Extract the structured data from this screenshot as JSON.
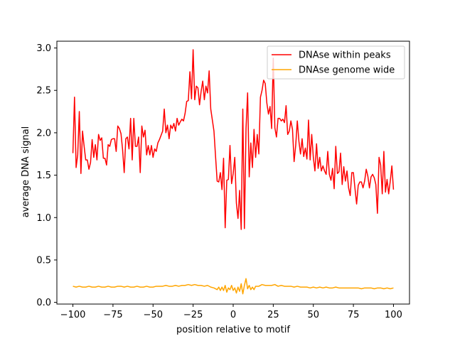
{
  "chart_data": {
    "type": "line",
    "title": "",
    "xlabel": "position relative to motif",
    "ylabel": "average DNA signal",
    "xlim": [
      -110,
      110
    ],
    "ylim": [
      -0.02,
      3.08
    ],
    "xticks": [
      -100,
      -75,
      -50,
      -25,
      0,
      25,
      50,
      75,
      100
    ],
    "yticks": [
      0.0,
      0.5,
      1.0,
      1.5,
      2.0,
      2.5,
      3.0
    ],
    "xtick_labels": [
      "−100",
      "−75",
      "−50",
      "−25",
      "0",
      "25",
      "50",
      "75",
      "100"
    ],
    "ytick_labels": [
      "0.0",
      "0.5",
      "1.0",
      "1.5",
      "2.0",
      "2.5",
      "3.0"
    ],
    "grid": false,
    "legend_position": "top-right",
    "series": [
      {
        "name": "DNAse within peaks",
        "color": "#ff0000",
        "points": [
          [
            -100,
            1.76
          ],
          [
            -99,
            2.42
          ],
          [
            -98,
            1.59
          ],
          [
            -97,
            1.74
          ],
          [
            -96,
            2.25
          ],
          [
            -95,
            1.52
          ],
          [
            -94,
            2.02
          ],
          [
            -93,
            1.84
          ],
          [
            -92,
            1.68
          ],
          [
            -91,
            1.68
          ],
          [
            -90,
            1.57
          ],
          [
            -89,
            1.65
          ],
          [
            -88,
            1.92
          ],
          [
            -87,
            1.71
          ],
          [
            -86,
            1.86
          ],
          [
            -85,
            1.68
          ],
          [
            -84,
            1.98
          ],
          [
            -83,
            1.91
          ],
          [
            -82,
            1.94
          ],
          [
            -81,
            1.7
          ],
          [
            -80,
            1.7
          ],
          [
            -79,
            1.62
          ],
          [
            -78,
            1.86
          ],
          [
            -77,
            1.84
          ],
          [
            -76,
            1.92
          ],
          [
            -75,
            1.93
          ],
          [
            -74,
            1.93
          ],
          [
            -73,
            1.78
          ],
          [
            -72,
            2.08
          ],
          [
            -71,
            2.05
          ],
          [
            -70,
            1.99
          ],
          [
            -69,
            1.8
          ],
          [
            -68,
            1.53
          ],
          [
            -67,
            1.93
          ],
          [
            -66,
            1.95
          ],
          [
            -65,
            1.81
          ],
          [
            -64,
            2.17
          ],
          [
            -63,
            1.68
          ],
          [
            -62,
            2.17
          ],
          [
            -61,
            1.84
          ],
          [
            -60,
            1.84
          ],
          [
            -59,
            1.95
          ],
          [
            -58,
            1.53
          ],
          [
            -57,
            2.08
          ],
          [
            -56,
            1.95
          ],
          [
            -55,
            2.03
          ],
          [
            -54,
            1.74
          ],
          [
            -53,
            1.85
          ],
          [
            -52,
            1.74
          ],
          [
            -51,
            1.85
          ],
          [
            -50,
            1.71
          ],
          [
            -49,
            1.81
          ],
          [
            -48,
            1.78
          ],
          [
            -47,
            1.88
          ],
          [
            -46,
            1.92
          ],
          [
            -45,
            1.97
          ],
          [
            -44,
            2.02
          ],
          [
            -43,
            2.28
          ],
          [
            -42,
            2.0
          ],
          [
            -41,
            2.09
          ],
          [
            -40,
            1.93
          ],
          [
            -39,
            2.09
          ],
          [
            -38,
            2.05
          ],
          [
            -37,
            2.11
          ],
          [
            -36,
            2.02
          ],
          [
            -35,
            2.17
          ],
          [
            -34,
            2.09
          ],
          [
            -33,
            2.13
          ],
          [
            -32,
            2.16
          ],
          [
            -31,
            2.14
          ],
          [
            -30,
            2.23
          ],
          [
            -29,
            2.37
          ],
          [
            -28,
            2.38
          ],
          [
            -27,
            2.72
          ],
          [
            -26,
            2.4
          ],
          [
            -25,
            2.98
          ],
          [
            -24,
            2.39
          ],
          [
            -23,
            2.55
          ],
          [
            -22,
            2.53
          ],
          [
            -21,
            2.33
          ],
          [
            -20,
            2.49
          ],
          [
            -19,
            2.61
          ],
          [
            -18,
            2.39
          ],
          [
            -17,
            2.55
          ],
          [
            -16,
            2.47
          ],
          [
            -15,
            2.73
          ],
          [
            -14,
            2.28
          ],
          [
            -13,
            2.15
          ],
          [
            -12,
            2.02
          ],
          [
            -11,
            1.72
          ],
          [
            -10,
            1.43
          ],
          [
            -9,
            1.42
          ],
          [
            -8,
            1.53
          ],
          [
            -7,
            1.33
          ],
          [
            -6,
            1.7
          ],
          [
            -5,
            0.88
          ],
          [
            -4,
            1.44
          ],
          [
            -3,
            1.45
          ],
          [
            -2,
            1.85
          ],
          [
            -1,
            1.4
          ],
          [
            0,
            1.52
          ],
          [
            1,
            1.71
          ],
          [
            2,
            1.17
          ],
          [
            3,
            0.99
          ],
          [
            4,
            1.32
          ],
          [
            5,
            0.86
          ],
          [
            6,
            2.28
          ],
          [
            7,
            0.87
          ],
          [
            8,
            2.05
          ],
          [
            9,
            2.47
          ],
          [
            10,
            1.48
          ],
          [
            11,
            1.88
          ],
          [
            12,
            1.59
          ],
          [
            13,
            2.04
          ],
          [
            14,
            1.71
          ],
          [
            15,
            1.98
          ],
          [
            16,
            1.75
          ],
          [
            17,
            2.42
          ],
          [
            18,
            2.5
          ],
          [
            19,
            2.62
          ],
          [
            20,
            2.58
          ],
          [
            21,
            2.35
          ],
          [
            22,
            2.22
          ],
          [
            23,
            2.31
          ],
          [
            24,
            2.05
          ],
          [
            25,
            2.88
          ],
          [
            26,
            2.06
          ],
          [
            27,
            1.95
          ],
          [
            28,
            2.17
          ],
          [
            29,
            2.17
          ],
          [
            30,
            2.14
          ],
          [
            31,
            2.16
          ],
          [
            32,
            2.12
          ],
          [
            33,
            2.32
          ],
          [
            34,
            1.98
          ],
          [
            35,
            2.02
          ],
          [
            36,
            2.14
          ],
          [
            37,
            2.04
          ],
          [
            38,
            1.66
          ],
          [
            39,
            1.85
          ],
          [
            40,
            2.14
          ],
          [
            41,
            1.9
          ],
          [
            42,
            1.75
          ],
          [
            43,
            1.93
          ],
          [
            44,
            1.72
          ],
          [
            45,
            1.82
          ],
          [
            46,
            1.69
          ],
          [
            47,
            2.15
          ],
          [
            48,
            1.68
          ],
          [
            49,
            1.98
          ],
          [
            50,
            1.71
          ],
          [
            51,
            1.55
          ],
          [
            52,
            1.87
          ],
          [
            53,
            1.58
          ],
          [
            54,
            1.71
          ],
          [
            55,
            1.55
          ],
          [
            56,
            1.61
          ],
          [
            57,
            1.55
          ],
          [
            58,
            1.51
          ],
          [
            59,
            1.78
          ],
          [
            60,
            1.51
          ],
          [
            61,
            1.44
          ],
          [
            62,
            1.58
          ],
          [
            63,
            1.34
          ],
          [
            64,
            1.84
          ],
          [
            65,
            1.52
          ],
          [
            66,
            1.54
          ],
          [
            67,
            1.76
          ],
          [
            68,
            1.39
          ],
          [
            69,
            1.6
          ],
          [
            70,
            1.43
          ],
          [
            71,
            1.55
          ],
          [
            72,
            1.35
          ],
          [
            73,
            1.26
          ],
          [
            74,
            1.53
          ],
          [
            75,
            1.53
          ],
          [
            76,
            1.34
          ],
          [
            77,
            1.16
          ],
          [
            78,
            1.38
          ],
          [
            79,
            1.42
          ],
          [
            80,
            1.42
          ],
          [
            81,
            1.35
          ],
          [
            82,
            1.43
          ],
          [
            83,
            1.57
          ],
          [
            84,
            1.49
          ],
          [
            85,
            1.35
          ],
          [
            86,
            1.48
          ],
          [
            87,
            1.51
          ],
          [
            88,
            1.47
          ],
          [
            89,
            1.39
          ],
          [
            90,
            1.05
          ],
          [
            91,
            1.71
          ],
          [
            92,
            1.62
          ],
          [
            93,
            1.28
          ],
          [
            94,
            1.78
          ],
          [
            95,
            1.3
          ],
          [
            96,
            1.45
          ],
          [
            97,
            1.28
          ],
          [
            98,
            1.43
          ],
          [
            99,
            1.61
          ],
          [
            100,
            1.33
          ]
        ]
      },
      {
        "name": "DNAse genome wide",
        "color": "#ffa500",
        "points": [
          [
            -100,
            0.19
          ],
          [
            -98,
            0.18
          ],
          [
            -96,
            0.19
          ],
          [
            -94,
            0.18
          ],
          [
            -92,
            0.18
          ],
          [
            -90,
            0.19
          ],
          [
            -88,
            0.18
          ],
          [
            -86,
            0.18
          ],
          [
            -84,
            0.19
          ],
          [
            -82,
            0.18
          ],
          [
            -80,
            0.18
          ],
          [
            -78,
            0.19
          ],
          [
            -76,
            0.18
          ],
          [
            -74,
            0.18
          ],
          [
            -72,
            0.19
          ],
          [
            -70,
            0.19
          ],
          [
            -68,
            0.18
          ],
          [
            -66,
            0.19
          ],
          [
            -64,
            0.18
          ],
          [
            -62,
            0.18
          ],
          [
            -60,
            0.19
          ],
          [
            -58,
            0.18
          ],
          [
            -56,
            0.18
          ],
          [
            -54,
            0.19
          ],
          [
            -52,
            0.18
          ],
          [
            -50,
            0.18
          ],
          [
            -48,
            0.19
          ],
          [
            -46,
            0.19
          ],
          [
            -44,
            0.19
          ],
          [
            -42,
            0.2
          ],
          [
            -40,
            0.19
          ],
          [
            -38,
            0.19
          ],
          [
            -36,
            0.2
          ],
          [
            -34,
            0.19
          ],
          [
            -32,
            0.2
          ],
          [
            -30,
            0.2
          ],
          [
            -28,
            0.21
          ],
          [
            -26,
            0.2
          ],
          [
            -24,
            0.21
          ],
          [
            -22,
            0.2
          ],
          [
            -20,
            0.2
          ],
          [
            -18,
            0.19
          ],
          [
            -16,
            0.2
          ],
          [
            -14,
            0.18
          ],
          [
            -12,
            0.17
          ],
          [
            -10,
            0.15
          ],
          [
            -9,
            0.18
          ],
          [
            -8,
            0.14
          ],
          [
            -7,
            0.18
          ],
          [
            -6,
            0.14
          ],
          [
            -5,
            0.2
          ],
          [
            -4,
            0.12
          ],
          [
            -3,
            0.17
          ],
          [
            -2,
            0.15
          ],
          [
            -1,
            0.2
          ],
          [
            0,
            0.14
          ],
          [
            1,
            0.17
          ],
          [
            2,
            0.11
          ],
          [
            3,
            0.18
          ],
          [
            4,
            0.13
          ],
          [
            5,
            0.22
          ],
          [
            6,
            0.1
          ],
          [
            7,
            0.2
          ],
          [
            8,
            0.28
          ],
          [
            9,
            0.16
          ],
          [
            10,
            0.2
          ],
          [
            11,
            0.15
          ],
          [
            12,
            0.18
          ],
          [
            13,
            0.15
          ],
          [
            14,
            0.19
          ],
          [
            16,
            0.19
          ],
          [
            18,
            0.21
          ],
          [
            20,
            0.2
          ],
          [
            22,
            0.2
          ],
          [
            24,
            0.2
          ],
          [
            26,
            0.21
          ],
          [
            28,
            0.19
          ],
          [
            30,
            0.2
          ],
          [
            32,
            0.19
          ],
          [
            34,
            0.19
          ],
          [
            36,
            0.19
          ],
          [
            38,
            0.18
          ],
          [
            40,
            0.19
          ],
          [
            42,
            0.18
          ],
          [
            44,
            0.18
          ],
          [
            46,
            0.18
          ],
          [
            48,
            0.17
          ],
          [
            50,
            0.18
          ],
          [
            52,
            0.17
          ],
          [
            54,
            0.18
          ],
          [
            56,
            0.17
          ],
          [
            58,
            0.18
          ],
          [
            60,
            0.17
          ],
          [
            62,
            0.17
          ],
          [
            64,
            0.18
          ],
          [
            66,
            0.17
          ],
          [
            68,
            0.17
          ],
          [
            70,
            0.17
          ],
          [
            72,
            0.17
          ],
          [
            74,
            0.17
          ],
          [
            76,
            0.17
          ],
          [
            78,
            0.17
          ],
          [
            80,
            0.16
          ],
          [
            82,
            0.17
          ],
          [
            84,
            0.17
          ],
          [
            86,
            0.17
          ],
          [
            88,
            0.16
          ],
          [
            90,
            0.17
          ],
          [
            92,
            0.17
          ],
          [
            94,
            0.16
          ],
          [
            96,
            0.17
          ],
          [
            98,
            0.16
          ],
          [
            100,
            0.17
          ]
        ]
      }
    ]
  }
}
